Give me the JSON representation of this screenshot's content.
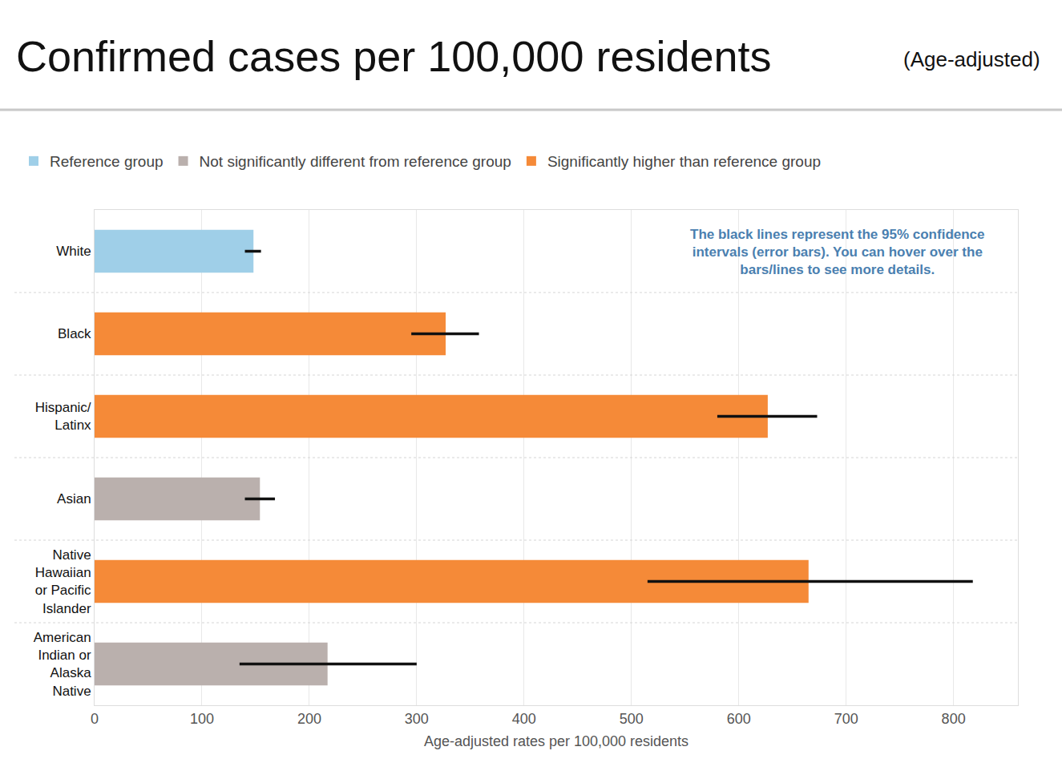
{
  "chart_data": {
    "type": "bar",
    "title": "Confirmed cases per 100,000 residents",
    "subtitle": "(Age-adjusted)",
    "orientation": "horizontal",
    "categories": [
      "White",
      "Black",
      "Hispanic/Latinx",
      "Asian",
      "Native Hawaiian or Pacific Islander",
      "American Indian or Alaska Native"
    ],
    "series": [
      {
        "name": "Reference group",
        "color": "#9fcfe8",
        "values": [
          148,
          null,
          null,
          null,
          null,
          null
        ],
        "error_low": [
          140,
          null,
          null,
          null,
          null,
          null
        ],
        "error_high": [
          155,
          null,
          null,
          null,
          null,
          null
        ]
      },
      {
        "name": "Not significantly different from reference group",
        "color": "#bab0ad",
        "values": [
          null,
          null,
          null,
          154,
          null,
          217
        ],
        "error_low": [
          null,
          null,
          null,
          140,
          null,
          135
        ],
        "error_high": [
          null,
          null,
          null,
          168,
          null,
          300
        ]
      },
      {
        "name": "Significantly higher than reference group",
        "color": "#f58a38",
        "values": [
          null,
          327,
          627,
          null,
          665,
          null
        ],
        "error_low": [
          null,
          295,
          580,
          null,
          515,
          null
        ],
        "error_high": [
          null,
          358,
          673,
          null,
          818,
          null
        ]
      }
    ],
    "x_label": "Age-adjusted rates per 100,000 residents",
    "annotations": [
      "The black lines represent the 95% confidence intervals (error bars). You can hover over the bars/lines to see more details."
    ],
    "xlim": [
      0,
      860
    ],
    "xticks": [
      0,
      100,
      200,
      300,
      400,
      500,
      600,
      700,
      800
    ],
    "grid": true,
    "legend": "top"
  }
}
